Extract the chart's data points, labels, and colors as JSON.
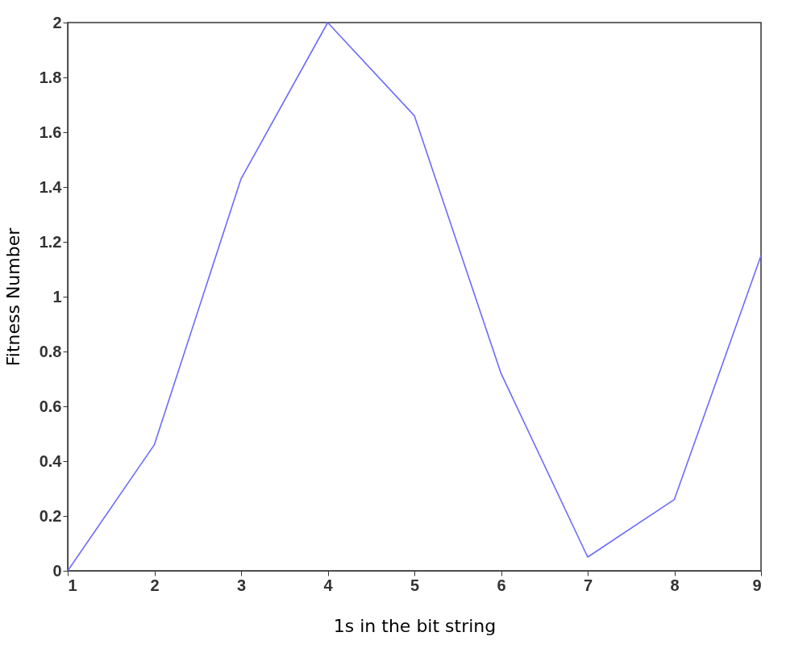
{
  "chart_data": {
    "type": "line",
    "xlabel": "1s in the bit string",
    "ylabel": "Fitness Number",
    "x": [
      1,
      2,
      3,
      4,
      5,
      6,
      7,
      8,
      9
    ],
    "series": [
      {
        "color": "#6b6bff",
        "values": [
          0,
          0.46,
          1.43,
          2.0,
          1.66,
          0.72,
          0.05,
          0.26,
          1.15
        ]
      }
    ],
    "xlim": [
      1,
      9
    ],
    "xticks": [
      1,
      2,
      3,
      4,
      5,
      6,
      7,
      8,
      9
    ],
    "ylim": [
      0,
      2
    ],
    "yticks": [
      0,
      0.2,
      0.4,
      0.6,
      0.8,
      1,
      1.2,
      1.4,
      1.6,
      1.8,
      2
    ],
    "grid": false,
    "marker": "none",
    "line_style": "solid"
  }
}
